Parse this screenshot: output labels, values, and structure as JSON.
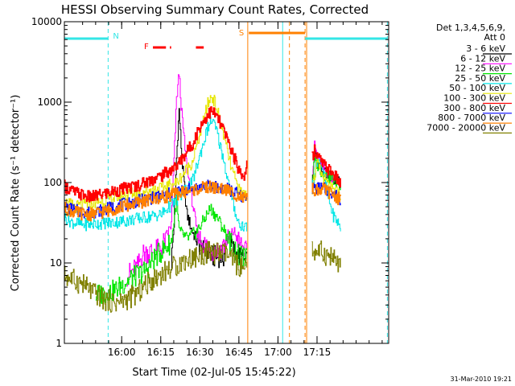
{
  "chart_data": {
    "type": "line",
    "title": "HESSI Observing Summary Count Rates, Corrected",
    "xlabel": "Start Time (02-Jul-05 15:45:22)",
    "ylabel": "Corrected Count Rate (s⁻¹ detector⁻¹)",
    "yscale": "log",
    "ylim": [
      1,
      10000
    ],
    "xlim_minutes": [
      -7.0,
      117.5
    ],
    "x_ticks": [
      {
        "m": 15,
        "label": "16:00"
      },
      {
        "m": 30,
        "label": "16:15"
      },
      {
        "m": 45,
        "label": "16:30"
      },
      {
        "m": 60,
        "label": "16:45"
      },
      {
        "m": 75,
        "label": "17:00"
      },
      {
        "m": 90,
        "label": "17:15"
      }
    ],
    "y_ticks": [
      {
        "v": 1,
        "label": "1"
      },
      {
        "v": 10,
        "label": "10"
      },
      {
        "v": 100,
        "label": "100"
      },
      {
        "v": 1000,
        "label": "1000"
      },
      {
        "v": 10000,
        "label": "10000"
      }
    ],
    "legend": {
      "header": [
        "Det 1,3,4,5,6,9,",
        "Att 0"
      ],
      "placement": "right-outside"
    },
    "footer_date": "31-Mar-2010 19:21",
    "flags": [
      {
        "label": "N",
        "color": "#33e6e6"
      },
      {
        "label": "F",
        "color": "#ff0000"
      },
      {
        "label": "S",
        "color": "#ff8000"
      }
    ],
    "series": [
      {
        "name": "3 - 6 keV",
        "color": "#000000",
        "points": [
          [
            34,
            10
          ],
          [
            35,
            30
          ],
          [
            36,
            200
          ],
          [
            37,
            800
          ],
          [
            38,
            200
          ],
          [
            40,
            40
          ],
          [
            42,
            25
          ],
          [
            46,
            14
          ],
          [
            50,
            12
          ],
          [
            54,
            12
          ],
          [
            56,
            22
          ],
          [
            58,
            14
          ],
          [
            60,
            12
          ],
          [
            63,
            10
          ],
          [
            87,
            null
          ],
          [
            88,
            90
          ],
          [
            89,
            230
          ],
          [
            90,
            190
          ],
          [
            92,
            140
          ],
          [
            95,
            120
          ],
          [
            99,
            100
          ]
        ]
      },
      {
        "name": "6 - 12 keV",
        "color": "#ff00ff",
        "points": [
          [
            17,
            7
          ],
          [
            21,
            9
          ],
          [
            23,
            13
          ],
          [
            30,
            15
          ],
          [
            34,
            30
          ],
          [
            36,
            1100
          ],
          [
            37,
            2300
          ],
          [
            38,
            700
          ],
          [
            40,
            150
          ],
          [
            42,
            60
          ],
          [
            44,
            22
          ],
          [
            46,
            18
          ],
          [
            50,
            14
          ],
          [
            53,
            15
          ],
          [
            55,
            18
          ],
          [
            58,
            25
          ],
          [
            60,
            18
          ],
          [
            63,
            13
          ],
          [
            87,
            null
          ],
          [
            88,
            100
          ],
          [
            89,
            280
          ],
          [
            90,
            220
          ],
          [
            92,
            150
          ],
          [
            99,
            100
          ]
        ]
      },
      {
        "name": "12 - 25 keV",
        "color": "#00e600",
        "points": [
          [
            5,
            4
          ],
          [
            12,
            4.5
          ],
          [
            17,
            6
          ],
          [
            24,
            8
          ],
          [
            28,
            12
          ],
          [
            34,
            18
          ],
          [
            36,
            60
          ],
          [
            37,
            25
          ],
          [
            40,
            20
          ],
          [
            44,
            25
          ],
          [
            49,
            48
          ],
          [
            52,
            35
          ],
          [
            56,
            20
          ],
          [
            60,
            12
          ],
          [
            63,
            11
          ],
          [
            87,
            null
          ],
          [
            88,
            100
          ],
          [
            89,
            180
          ],
          [
            90,
            170
          ],
          [
            92,
            130
          ],
          [
            99,
            95
          ]
        ]
      },
      {
        "name": "25 - 50 keV",
        "color": "#00e6e6",
        "points": [
          [
            -7,
            37
          ],
          [
            -4,
            32
          ],
          [
            0,
            30
          ],
          [
            6,
            31
          ],
          [
            12,
            32
          ],
          [
            20,
            35
          ],
          [
            30,
            40
          ],
          [
            36,
            60
          ],
          [
            42,
            100
          ],
          [
            45,
            220
          ],
          [
            48,
            480
          ],
          [
            49.5,
            600
          ],
          [
            51,
            480
          ],
          [
            54,
            200
          ],
          [
            57,
            65
          ],
          [
            60,
            30
          ],
          [
            63,
            28
          ],
          [
            87,
            null
          ],
          [
            88,
            85
          ],
          [
            90,
            190
          ],
          [
            92,
            160
          ],
          [
            94,
            70
          ],
          [
            96,
            40
          ],
          [
            99,
            28
          ]
        ]
      },
      {
        "name": "50 - 100 keV",
        "color": "#e6e600",
        "points": [
          [
            -7,
            57
          ],
          [
            -3,
            50
          ],
          [
            3,
            55
          ],
          [
            10,
            62
          ],
          [
            20,
            75
          ],
          [
            30,
            85
          ],
          [
            36,
            100
          ],
          [
            42,
            180
          ],
          [
            45,
            400
          ],
          [
            48,
            950
          ],
          [
            49.5,
            1200
          ],
          [
            51,
            950
          ],
          [
            54,
            400
          ],
          [
            57,
            150
          ],
          [
            60,
            80
          ],
          [
            63,
            70
          ],
          [
            87,
            null
          ],
          [
            88,
            85
          ],
          [
            90,
            170
          ],
          [
            92,
            120
          ],
          [
            95,
            85
          ],
          [
            99,
            70
          ]
        ]
      },
      {
        "name": "100 - 300 keV",
        "color": "#ff0000",
        "points": [
          [
            -7,
            90
          ],
          [
            -3,
            75
          ],
          [
            3,
            65
          ],
          [
            10,
            75
          ],
          [
            20,
            90
          ],
          [
            30,
            120
          ],
          [
            36,
            160
          ],
          [
            42,
            300
          ],
          [
            45,
            500
          ],
          [
            48,
            700
          ],
          [
            49.5,
            780
          ],
          [
            51,
            700
          ],
          [
            54,
            450
          ],
          [
            57,
            260
          ],
          [
            60,
            140
          ],
          [
            62,
            120
          ],
          [
            63,
            180
          ],
          [
            87,
            null
          ],
          [
            88,
            200
          ],
          [
            89,
            260
          ],
          [
            90,
            220
          ],
          [
            92,
            170
          ],
          [
            96,
            130
          ],
          [
            99,
            95
          ]
        ]
      },
      {
        "name": "300 - 800 keV",
        "color": "#0000ff",
        "points": [
          [
            -7,
            50
          ],
          [
            -3,
            45
          ],
          [
            3,
            42
          ],
          [
            10,
            48
          ],
          [
            20,
            58
          ],
          [
            30,
            68
          ],
          [
            40,
            82
          ],
          [
            48,
            90
          ],
          [
            55,
            85
          ],
          [
            60,
            70
          ],
          [
            63,
            60
          ],
          [
            87,
            null
          ],
          [
            88,
            85
          ],
          [
            92,
            85
          ],
          [
            96,
            75
          ],
          [
            99,
            60
          ]
        ]
      },
      {
        "name": "800 - 7000 keV",
        "color": "#ff8000",
        "points": [
          [
            -7,
            48
          ],
          [
            -3,
            42
          ],
          [
            3,
            40
          ],
          [
            10,
            45
          ],
          [
            20,
            55
          ],
          [
            30,
            65
          ],
          [
            40,
            78
          ],
          [
            48,
            88
          ],
          [
            55,
            82
          ],
          [
            60,
            68
          ],
          [
            63,
            60
          ],
          [
            87,
            null
          ],
          [
            88,
            82
          ],
          [
            92,
            82
          ],
          [
            96,
            72
          ],
          [
            99,
            60
          ]
        ]
      },
      {
        "name": "7000 - 20000 keV",
        "color": "#808000",
        "points": [
          [
            -7,
            7
          ],
          [
            -3,
            6
          ],
          [
            0,
            5.5
          ],
          [
            3,
            4.5
          ],
          [
            8,
            3.5
          ],
          [
            14,
            3.2
          ],
          [
            20,
            4
          ],
          [
            26,
            6
          ],
          [
            32,
            8
          ],
          [
            40,
            11
          ],
          [
            48,
            13.5
          ],
          [
            55,
            13
          ],
          [
            60,
            9
          ],
          [
            63,
            8
          ],
          [
            87,
            null
          ],
          [
            88,
            14
          ],
          [
            91,
            14
          ],
          [
            95,
            12
          ],
          [
            99,
            9
          ]
        ]
      }
    ]
  }
}
